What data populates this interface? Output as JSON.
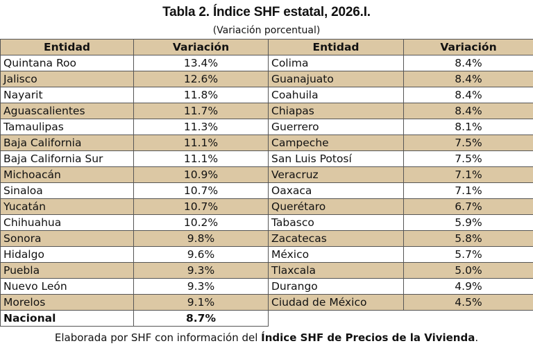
{
  "title": "Tabla 2. Índice SHF estatal, 2026.I.",
  "subtitle": "(Variación porcentual)",
  "headers": {
    "left_entity": "Entidad",
    "left_value": "Variación",
    "right_entity": "Entidad",
    "right_value": "Variación"
  },
  "left": [
    {
      "entity": "Quintana Roo",
      "value": "13.4%"
    },
    {
      "entity": "Jalisco",
      "value": "12.6%"
    },
    {
      "entity": "Nayarit",
      "value": "11.8%"
    },
    {
      "entity": "Aguascalientes",
      "value": "11.7%"
    },
    {
      "entity": "Tamaulipas",
      "value": "11.3%"
    },
    {
      "entity": "Baja California",
      "value": "11.1%"
    },
    {
      "entity": "Baja California Sur",
      "value": "11.1%"
    },
    {
      "entity": "Michoacán",
      "value": "10.9%"
    },
    {
      "entity": "Sinaloa",
      "value": "10.7%"
    },
    {
      "entity": "Yucatán",
      "value": "10.7%"
    },
    {
      "entity": "Chihuahua",
      "value": "10.2%"
    },
    {
      "entity": "Sonora",
      "value": "9.8%"
    },
    {
      "entity": "Hidalgo",
      "value": "9.6%"
    },
    {
      "entity": "Puebla",
      "value": "9.3%"
    },
    {
      "entity": "Nuevo León",
      "value": "9.3%"
    },
    {
      "entity": "Morelos",
      "value": "9.1%"
    },
    {
      "entity": "Nacional",
      "value": "8.7%"
    }
  ],
  "right": [
    {
      "entity": "Colima",
      "value": "8.4%"
    },
    {
      "entity": "Guanajuato",
      "value": "8.4%"
    },
    {
      "entity": "Coahuila",
      "value": "8.4%"
    },
    {
      "entity": "Chiapas",
      "value": "8.4%"
    },
    {
      "entity": "Guerrero",
      "value": "8.1%"
    },
    {
      "entity": "Campeche",
      "value": "7.5%"
    },
    {
      "entity": "San Luis Potosí",
      "value": "7.5%"
    },
    {
      "entity": "Veracruz",
      "value": "7.1%"
    },
    {
      "entity": "Oaxaca",
      "value": "7.1%"
    },
    {
      "entity": "Querétaro",
      "value": "6.7%"
    },
    {
      "entity": "Tabasco",
      "value": "5.9%"
    },
    {
      "entity": "Zacatecas",
      "value": "5.8%"
    },
    {
      "entity": "México",
      "value": "5.7%"
    },
    {
      "entity": "Tlaxcala",
      "value": "5.0%"
    },
    {
      "entity": "Durango",
      "value": "4.9%"
    },
    {
      "entity": "Ciudad de México",
      "value": "4.5%"
    }
  ],
  "caption": {
    "prefix": "Elaborada por SHF con información del ",
    "bold": "Índice SHF de Precios de la Vivienda",
    "suffix": "."
  },
  "colors": {
    "shade": "#dcc8a4",
    "border": "#555555"
  }
}
